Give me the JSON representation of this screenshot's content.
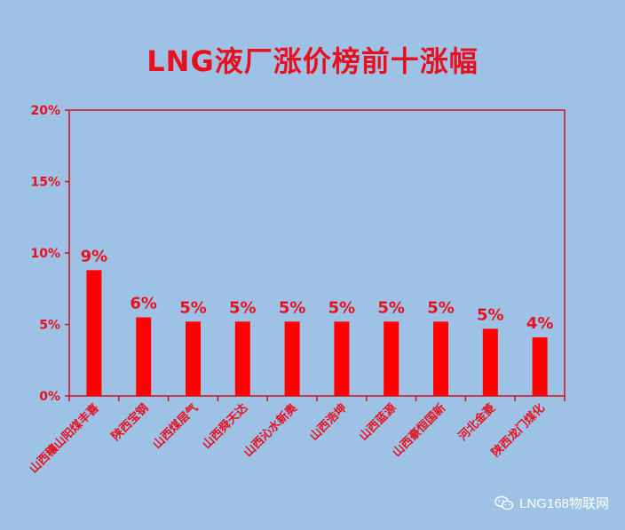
{
  "title": "LNG液厂涨价榜前十涨幅",
  "watermark": "LNG168物联网",
  "watermark_icon": "wechat-icon",
  "colors": {
    "background": "#9ec2e6",
    "bar": "#ff0000",
    "axis": "#d0101e",
    "text": "#e8101e",
    "watermark": "#ffffff"
  },
  "chart_data": {
    "type": "bar",
    "title": "LNG液厂涨价榜前十涨幅",
    "categories": [
      "山西穰山阳煤丰喜",
      "陕西宝钢",
      "山西煤层气",
      "山西舜天达",
      "山西沁水新奥",
      "山西浩坤",
      "山西蓝源",
      "山西豪恒国新",
      "河北金菱",
      "陕西龙门煤化"
    ],
    "values": [
      8.8,
      5.5,
      5.2,
      5.2,
      5.2,
      5.2,
      5.2,
      5.2,
      4.7,
      4.1
    ],
    "data_labels": [
      "9%",
      "6%",
      "5%",
      "5%",
      "5%",
      "5%",
      "5%",
      "5%",
      "5%",
      "4%"
    ],
    "ylim": [
      0,
      20
    ],
    "yticks": [
      "0%",
      "5%",
      "10%",
      "15%",
      "20%"
    ],
    "ytick_values": [
      0,
      5,
      10,
      15,
      20
    ],
    "grid": false,
    "legend": "none"
  }
}
